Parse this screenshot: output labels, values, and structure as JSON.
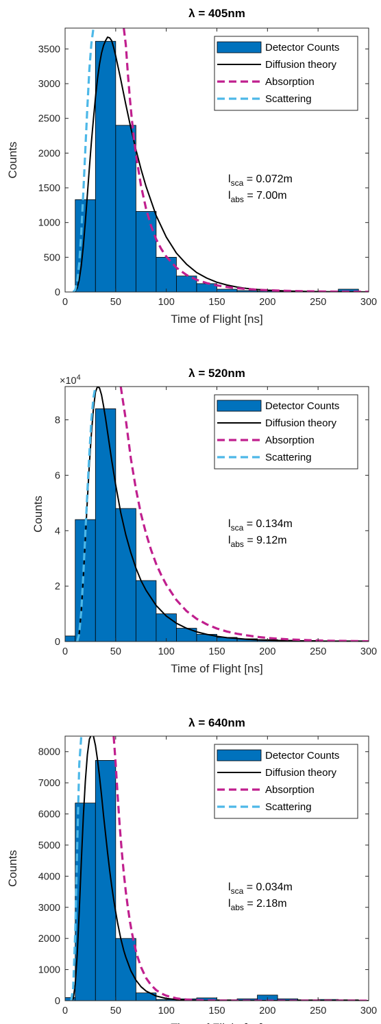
{
  "chart_data": [
    {
      "type": "bar",
      "title": "λ = 405nm",
      "xlabel": "Time of Flight [ns]",
      "ylabel": "Counts",
      "xlim": [
        0,
        300
      ],
      "ylim": [
        0,
        3800
      ],
      "xticks": [
        0,
        50,
        100,
        150,
        200,
        250,
        300
      ],
      "xtick_labels": [
        "0",
        "50",
        "100",
        "150",
        "200",
        "250",
        "300"
      ],
      "yticks": [
        0,
        500,
        1000,
        1500,
        2000,
        2500,
        3000,
        3500
      ],
      "ytick_labels": [
        "0",
        "500",
        "1000",
        "1500",
        "2000",
        "2500",
        "3000",
        "3500"
      ],
      "exponent": null,
      "bin_edges": [
        0,
        10,
        30,
        50,
        70,
        90,
        110,
        130,
        150,
        170,
        190,
        210,
        230,
        250,
        270,
        290
      ],
      "bin_counts": [
        0,
        1330,
        3610,
        2400,
        1160,
        500,
        230,
        120,
        40,
        20,
        15,
        10,
        8,
        5,
        40
      ],
      "legend": {
        "placement": "top-right",
        "entries": [
          "Detector Counts",
          "Diffusion theory",
          "Absorption",
          "Scattering"
        ]
      },
      "annotation": {
        "sca_prefix": "l",
        "sca_sub": "sca",
        "sca_rest": " = 0.072m",
        "abs_prefix": "l",
        "abs_sub": "abs",
        "abs_rest": " = 7.00m"
      },
      "series": [
        {
          "name": "Diffusion theory",
          "color": "#000000",
          "dashed": false,
          "x": [
            8,
            10,
            12,
            14,
            16,
            18,
            20,
            22,
            24,
            26,
            28,
            30,
            32,
            34,
            36,
            38,
            40,
            42,
            44,
            46,
            48,
            50,
            55,
            60,
            65,
            70,
            75,
            80,
            90,
            100,
            110,
            120,
            130,
            140,
            150,
            160,
            170,
            180,
            190,
            200,
            220,
            240,
            260,
            280,
            300
          ],
          "y": [
            0,
            10,
            60,
            180,
            380,
            660,
            1010,
            1400,
            1790,
            2160,
            2490,
            2800,
            3070,
            3280,
            3440,
            3550,
            3620,
            3670,
            3660,
            3620,
            3520,
            3400,
            3060,
            2700,
            2360,
            2050,
            1770,
            1520,
            1100,
            790,
            560,
            400,
            280,
            200,
            140,
            100,
            70,
            50,
            36,
            26,
            13,
            7,
            4,
            2,
            1
          ]
        },
        {
          "name": "Absorption",
          "color": "#c01f8e",
          "dashed": true,
          "x": [
            58,
            60,
            62,
            64,
            66,
            68,
            70,
            75,
            80,
            85,
            90,
            95,
            100,
            110,
            120,
            130,
            140,
            150,
            160,
            170,
            180,
            190,
            200,
            220,
            240,
            260,
            280,
            300
          ],
          "y": [
            3800,
            3560,
            3150,
            2790,
            2480,
            2210,
            1980,
            1530,
            1200,
            950,
            760,
            620,
            510,
            350,
            245,
            175,
            128,
            95,
            72,
            55,
            42,
            33,
            26,
            16,
            10,
            6,
            4,
            3
          ]
        },
        {
          "name": "Scattering",
          "color": "#4db8e8",
          "dashed": true,
          "x": [
            8,
            10,
            12,
            14,
            16,
            18,
            20,
            22,
            24,
            26,
            28
          ],
          "y": [
            0,
            30,
            150,
            420,
            860,
            1430,
            2050,
            2660,
            3210,
            3580,
            3800
          ]
        }
      ]
    },
    {
      "type": "bar",
      "title": "λ = 520nm",
      "xlabel": "Time of Flight [ns]",
      "ylabel": "Counts",
      "xlim": [
        0,
        300
      ],
      "ylim": [
        0,
        9.2
      ],
      "xticks": [
        0,
        50,
        100,
        150,
        200,
        250,
        300
      ],
      "xtick_labels": [
        "0",
        "50",
        "100",
        "150",
        "200",
        "250",
        "300"
      ],
      "yticks": [
        0,
        2,
        4,
        6,
        8
      ],
      "ytick_labels": [
        "0",
        "2",
        "4",
        "6",
        "8"
      ],
      "exponent": {
        "base": "×10",
        "power": "4"
      },
      "bin_edges": [
        0,
        10,
        30,
        50,
        70,
        90,
        110,
        130,
        150,
        170,
        190,
        210,
        230,
        250,
        270,
        290,
        300
      ],
      "bin_counts": [
        0.2,
        4.4,
        8.4,
        4.8,
        2.2,
        1.0,
        0.48,
        0.26,
        0.15,
        0.1,
        0.07,
        0.05,
        0.04,
        0.03,
        0.03,
        0.03
      ],
      "legend": {
        "placement": "top-right",
        "entries": [
          "Detector Counts",
          "Diffusion theory",
          "Absorption",
          "Scattering"
        ]
      },
      "annotation": {
        "sca_prefix": "l",
        "sca_sub": "sca",
        "sca_rest": " = 0.134m",
        "abs_prefix": "l",
        "abs_sub": "abs",
        "abs_rest": " = 9.12m"
      },
      "series": [
        {
          "name": "Diffusion theory",
          "color": "#000000",
          "dashed": false,
          "x": [
            12,
            14,
            16,
            18,
            20,
            22,
            24,
            26,
            28,
            30,
            32,
            34,
            36,
            38,
            40,
            42,
            44,
            46,
            48,
            50,
            55,
            60,
            65,
            70,
            75,
            80,
            90,
            100,
            110,
            120,
            130,
            140,
            150,
            160,
            170,
            180,
            190,
            200,
            220,
            240,
            260,
            280,
            300
          ],
          "y": [
            0,
            0.3,
            1.1,
            2.3,
            3.7,
            5.1,
            6.4,
            7.5,
            8.4,
            9.0,
            9.2,
            9.15,
            8.9,
            8.5,
            8.05,
            7.55,
            7.05,
            6.55,
            6.1,
            5.65,
            4.65,
            3.85,
            3.2,
            2.65,
            2.2,
            1.85,
            1.3,
            0.92,
            0.66,
            0.48,
            0.35,
            0.26,
            0.19,
            0.14,
            0.11,
            0.08,
            0.06,
            0.05,
            0.03,
            0.02,
            0.01,
            0.01,
            0.0
          ]
        },
        {
          "name": "Absorption",
          "color": "#c01f8e",
          "dashed": true,
          "x": [
            55,
            60,
            65,
            70,
            75,
            80,
            85,
            90,
            95,
            100,
            110,
            120,
            130,
            140,
            150,
            160,
            170,
            180,
            190,
            200,
            220,
            240,
            260,
            280,
            300
          ],
          "y": [
            9.2,
            8.0,
            6.6,
            5.5,
            4.6,
            3.9,
            3.3,
            2.8,
            2.4,
            2.05,
            1.5,
            1.1,
            0.82,
            0.62,
            0.47,
            0.36,
            0.28,
            0.22,
            0.17,
            0.13,
            0.08,
            0.05,
            0.03,
            0.02,
            0.01
          ]
        },
        {
          "name": "Scattering",
          "color": "#4db8e8",
          "dashed": true,
          "x": [
            12,
            14,
            16,
            18,
            20,
            22,
            24,
            26,
            28,
            30
          ],
          "y": [
            0,
            0.3,
            1.1,
            2.4,
            3.9,
            5.4,
            6.8,
            8.0,
            8.8,
            9.2
          ]
        }
      ]
    },
    {
      "type": "bar",
      "title": "λ = 640nm",
      "xlabel": "Time of Flight [ns]",
      "ylabel": "Counts",
      "xlim": [
        0,
        300
      ],
      "ylim": [
        0,
        8500
      ],
      "xticks": [
        0,
        50,
        100,
        150,
        200,
        250,
        300
      ],
      "xtick_labels": [
        "0",
        "50",
        "100",
        "150",
        "200",
        "250",
        "300"
      ],
      "yticks": [
        0,
        1000,
        2000,
        3000,
        4000,
        5000,
        6000,
        7000,
        8000
      ],
      "ytick_labels": [
        "0",
        "1000",
        "2000",
        "3000",
        "4000",
        "5000",
        "6000",
        "7000",
        "8000"
      ],
      "exponent": null,
      "bin_edges": [
        0,
        10,
        30,
        50,
        70,
        90,
        110,
        130,
        150,
        170,
        190,
        210,
        230,
        250,
        270,
        290,
        300
      ],
      "bin_counts": [
        100,
        6350,
        7720,
        2000,
        250,
        40,
        60,
        90,
        30,
        60,
        180,
        60,
        30,
        40,
        30,
        10
      ],
      "legend": {
        "placement": "top-right",
        "entries": [
          "Detector Counts",
          "Diffusion theory",
          "Absorption",
          "Scattering"
        ]
      },
      "annotation": {
        "sca_prefix": "l",
        "sca_sub": "sca",
        "sca_rest": " = 0.034m",
        "abs_prefix": "l",
        "abs_sub": "abs",
        "abs_rest": " = 2.18m"
      },
      "series": [
        {
          "name": "Diffusion theory",
          "color": "#000000",
          "dashed": false,
          "x": [
            6,
            8,
            10,
            12,
            14,
            16,
            18,
            20,
            22,
            24,
            26,
            28,
            30,
            32,
            34,
            36,
            38,
            40,
            42,
            44,
            46,
            48,
            50,
            52,
            55,
            58,
            60,
            65,
            70,
            75,
            80,
            90,
            100,
            110,
            120,
            140,
            160,
            180,
            200,
            250,
            300
          ],
          "y": [
            0,
            60,
            520,
            1500,
            2900,
            4450,
            5900,
            7050,
            7900,
            8400,
            8550,
            8500,
            8200,
            7750,
            7200,
            6600,
            5950,
            5350,
            4750,
            4200,
            3700,
            3250,
            2850,
            2480,
            2000,
            1610,
            1400,
            960,
            660,
            450,
            310,
            150,
            72,
            35,
            17,
            4,
            1,
            0,
            0,
            0,
            0
          ]
        },
        {
          "name": "Absorption",
          "color": "#c01f8e",
          "dashed": true,
          "x": [
            48,
            50,
            52,
            54,
            56,
            58,
            60,
            62,
            64,
            66,
            68,
            70,
            72,
            75,
            80,
            85,
            90,
            95,
            100,
            110,
            120,
            140,
            160,
            200,
            250,
            300
          ],
          "y": [
            8500,
            7600,
            6550,
            5600,
            4800,
            4100,
            3500,
            3000,
            2560,
            2190,
            1870,
            1600,
            1370,
            1080,
            730,
            500,
            340,
            235,
            160,
            76,
            36,
            8,
            2,
            0,
            0,
            0
          ]
        },
        {
          "name": "Scattering",
          "color": "#4db8e8",
          "dashed": true,
          "x": [
            6,
            8,
            10,
            12,
            14,
            16
          ],
          "y": [
            0,
            400,
            2200,
            5000,
            7600,
            8500
          ]
        }
      ]
    }
  ]
}
